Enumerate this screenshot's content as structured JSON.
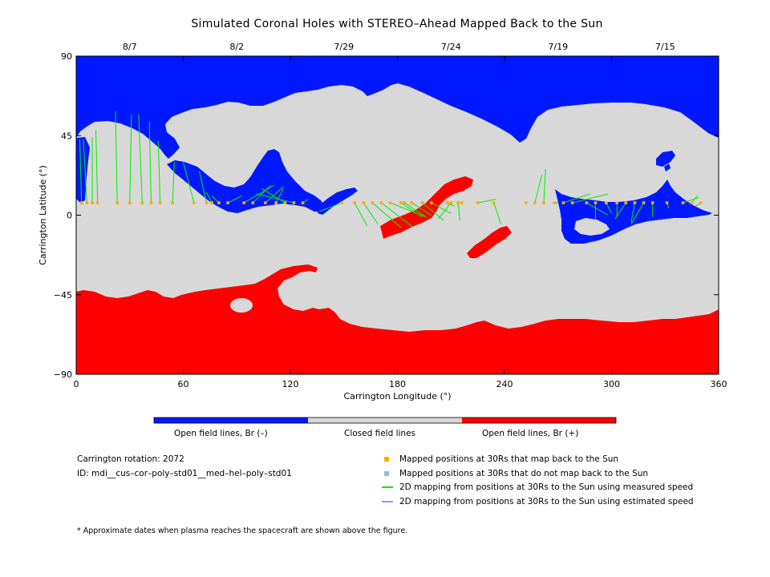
{
  "title": "Simulated Coronal Holes with STEREO–Ahead Mapped Back to the Sun",
  "chart_data": {
    "type": "scatter",
    "title": "Simulated Coronal Holes with STEREO–Ahead Mapped Back to the Sun",
    "xlabel": "Carrington Longitude (°)",
    "ylabel": "Carrington Latitude (°)",
    "xlim": [
      0,
      360
    ],
    "ylim": [
      -90,
      90
    ],
    "x_ticks": [
      "0",
      "60",
      "120",
      "180",
      "240",
      "300",
      "360"
    ],
    "y_ticks": [
      "90",
      "45",
      "0",
      "−45",
      "−90"
    ],
    "top_axis_dates": [
      {
        "label": "8/7",
        "lon": 30
      },
      {
        "label": "8/2",
        "lon": 90
      },
      {
        "label": "7/29",
        "lon": 150
      },
      {
        "label": "7/24",
        "lon": 210
      },
      {
        "label": "7/19",
        "lon": 270
      },
      {
        "label": "7/15",
        "lon": 330
      }
    ],
    "colors": {
      "open_negative": "#0018ff",
      "closed": "#d8d8d8",
      "open_positive": "#ff0000",
      "mapped_points": "#ffaa00",
      "unmapped_points": "#88c0f0",
      "measured_lines": "#00ee00",
      "estimated_lines": "#c080ff"
    },
    "mapped_latitude": 7,
    "mapped_points_lon": [
      3,
      6,
      9,
      12,
      23,
      30,
      37,
      42,
      47,
      54,
      66,
      73,
      76,
      80,
      85,
      94,
      99,
      106,
      112,
      117,
      122,
      127,
      149,
      156,
      161,
      166,
      171,
      176,
      182,
      184,
      188,
      194,
      199,
      208,
      210,
      214,
      216,
      225,
      234,
      252,
      257,
      262,
      268,
      273,
      278,
      286,
      291,
      297,
      303,
      308,
      313,
      318,
      323,
      331,
      340,
      345,
      350
    ],
    "mapping_lines_measured": [
      [
        3,
        7,
        2,
        43
      ],
      [
        6,
        7,
        4,
        43
      ],
      [
        9,
        7,
        9,
        44
      ],
      [
        12,
        7,
        11,
        48
      ],
      [
        23,
        7,
        22,
        59
      ],
      [
        30,
        7,
        31,
        57
      ],
      [
        37,
        7,
        35,
        57
      ],
      [
        42,
        7,
        41,
        53
      ],
      [
        47,
        7,
        46,
        42
      ],
      [
        54,
        7,
        55,
        30
      ],
      [
        66,
        7,
        60,
        30
      ],
      [
        73,
        7,
        69,
        25
      ],
      [
        76,
        7,
        73,
        13
      ],
      [
        80,
        7,
        76,
        11
      ],
      [
        85,
        7,
        93,
        11
      ],
      [
        94,
        7,
        111,
        17
      ],
      [
        99,
        7,
        109,
        17
      ],
      [
        106,
        7,
        116,
        16
      ],
      [
        112,
        7,
        116,
        15
      ],
      [
        117,
        7,
        104,
        15
      ],
      [
        122,
        7,
        101,
        12
      ],
      [
        127,
        7,
        130,
        9
      ],
      [
        149,
        7,
        136,
        2
      ],
      [
        156,
        7,
        163,
        -6
      ],
      [
        161,
        7,
        169,
        -5
      ],
      [
        166,
        7,
        182,
        -7
      ],
      [
        171,
        7,
        189,
        -7
      ],
      [
        176,
        7,
        196,
        -1
      ],
      [
        182,
        7,
        194,
        -1
      ],
      [
        184,
        7,
        196,
        -1
      ],
      [
        188,
        7,
        199,
        0
      ],
      [
        194,
        7,
        206,
        -3
      ],
      [
        199,
        7,
        210,
        1
      ],
      [
        208,
        7,
        212,
        5
      ],
      [
        210,
        7,
        203,
        -2
      ],
      [
        214,
        7,
        215,
        -3
      ],
      [
        225,
        7,
        235,
        9
      ],
      [
        234,
        7,
        238,
        -5
      ],
      [
        257,
        7,
        261,
        23
      ],
      [
        262,
        7,
        263,
        26
      ],
      [
        268,
        7,
        270,
        7
      ],
      [
        273,
        7,
        288,
        12
      ],
      [
        278,
        7,
        298,
        12
      ],
      [
        286,
        7,
        298,
        0
      ],
      [
        291,
        7,
        291,
        -3
      ],
      [
        297,
        7,
        300,
        1
      ],
      [
        303,
        7,
        303,
        -1
      ],
      [
        308,
        7,
        302,
        -2
      ],
      [
        313,
        7,
        311,
        -4
      ],
      [
        318,
        7,
        311,
        -5
      ],
      [
        323,
        7,
        323,
        -1
      ],
      [
        331,
        7,
        332,
        4
      ],
      [
        340,
        7,
        349,
        10
      ],
      [
        345,
        7,
        348,
        11
      ],
      [
        350,
        7,
        347,
        5
      ]
    ],
    "color_bar": [
      {
        "label": "Open field lines, Br (–)",
        "color": "#0018ff"
      },
      {
        "label": "Closed field lines",
        "color": "#d8d8d8"
      },
      {
        "label": "Open field lines, Br (+)",
        "color": "#ff0000"
      }
    ]
  },
  "info": {
    "rotation": "Carrington rotation: 2072",
    "model_id": "ID: mdi__cus–cor–poly–std01__med–hel–poly–std01",
    "footnote": "* Approximate dates when plasma reaches the spacecraft are shown above the figure."
  },
  "legend": {
    "mapped": "Mapped positions at 30Rs that map back to the Sun",
    "unmapped": "Mapped positions at 30Rs that do not map back to the Sun",
    "measured": "2D mapping from positions at 30Rs to the Sun using measured speed",
    "estimated": "2D mapping from positions at 30Rs to the Sun using estimated speed"
  }
}
